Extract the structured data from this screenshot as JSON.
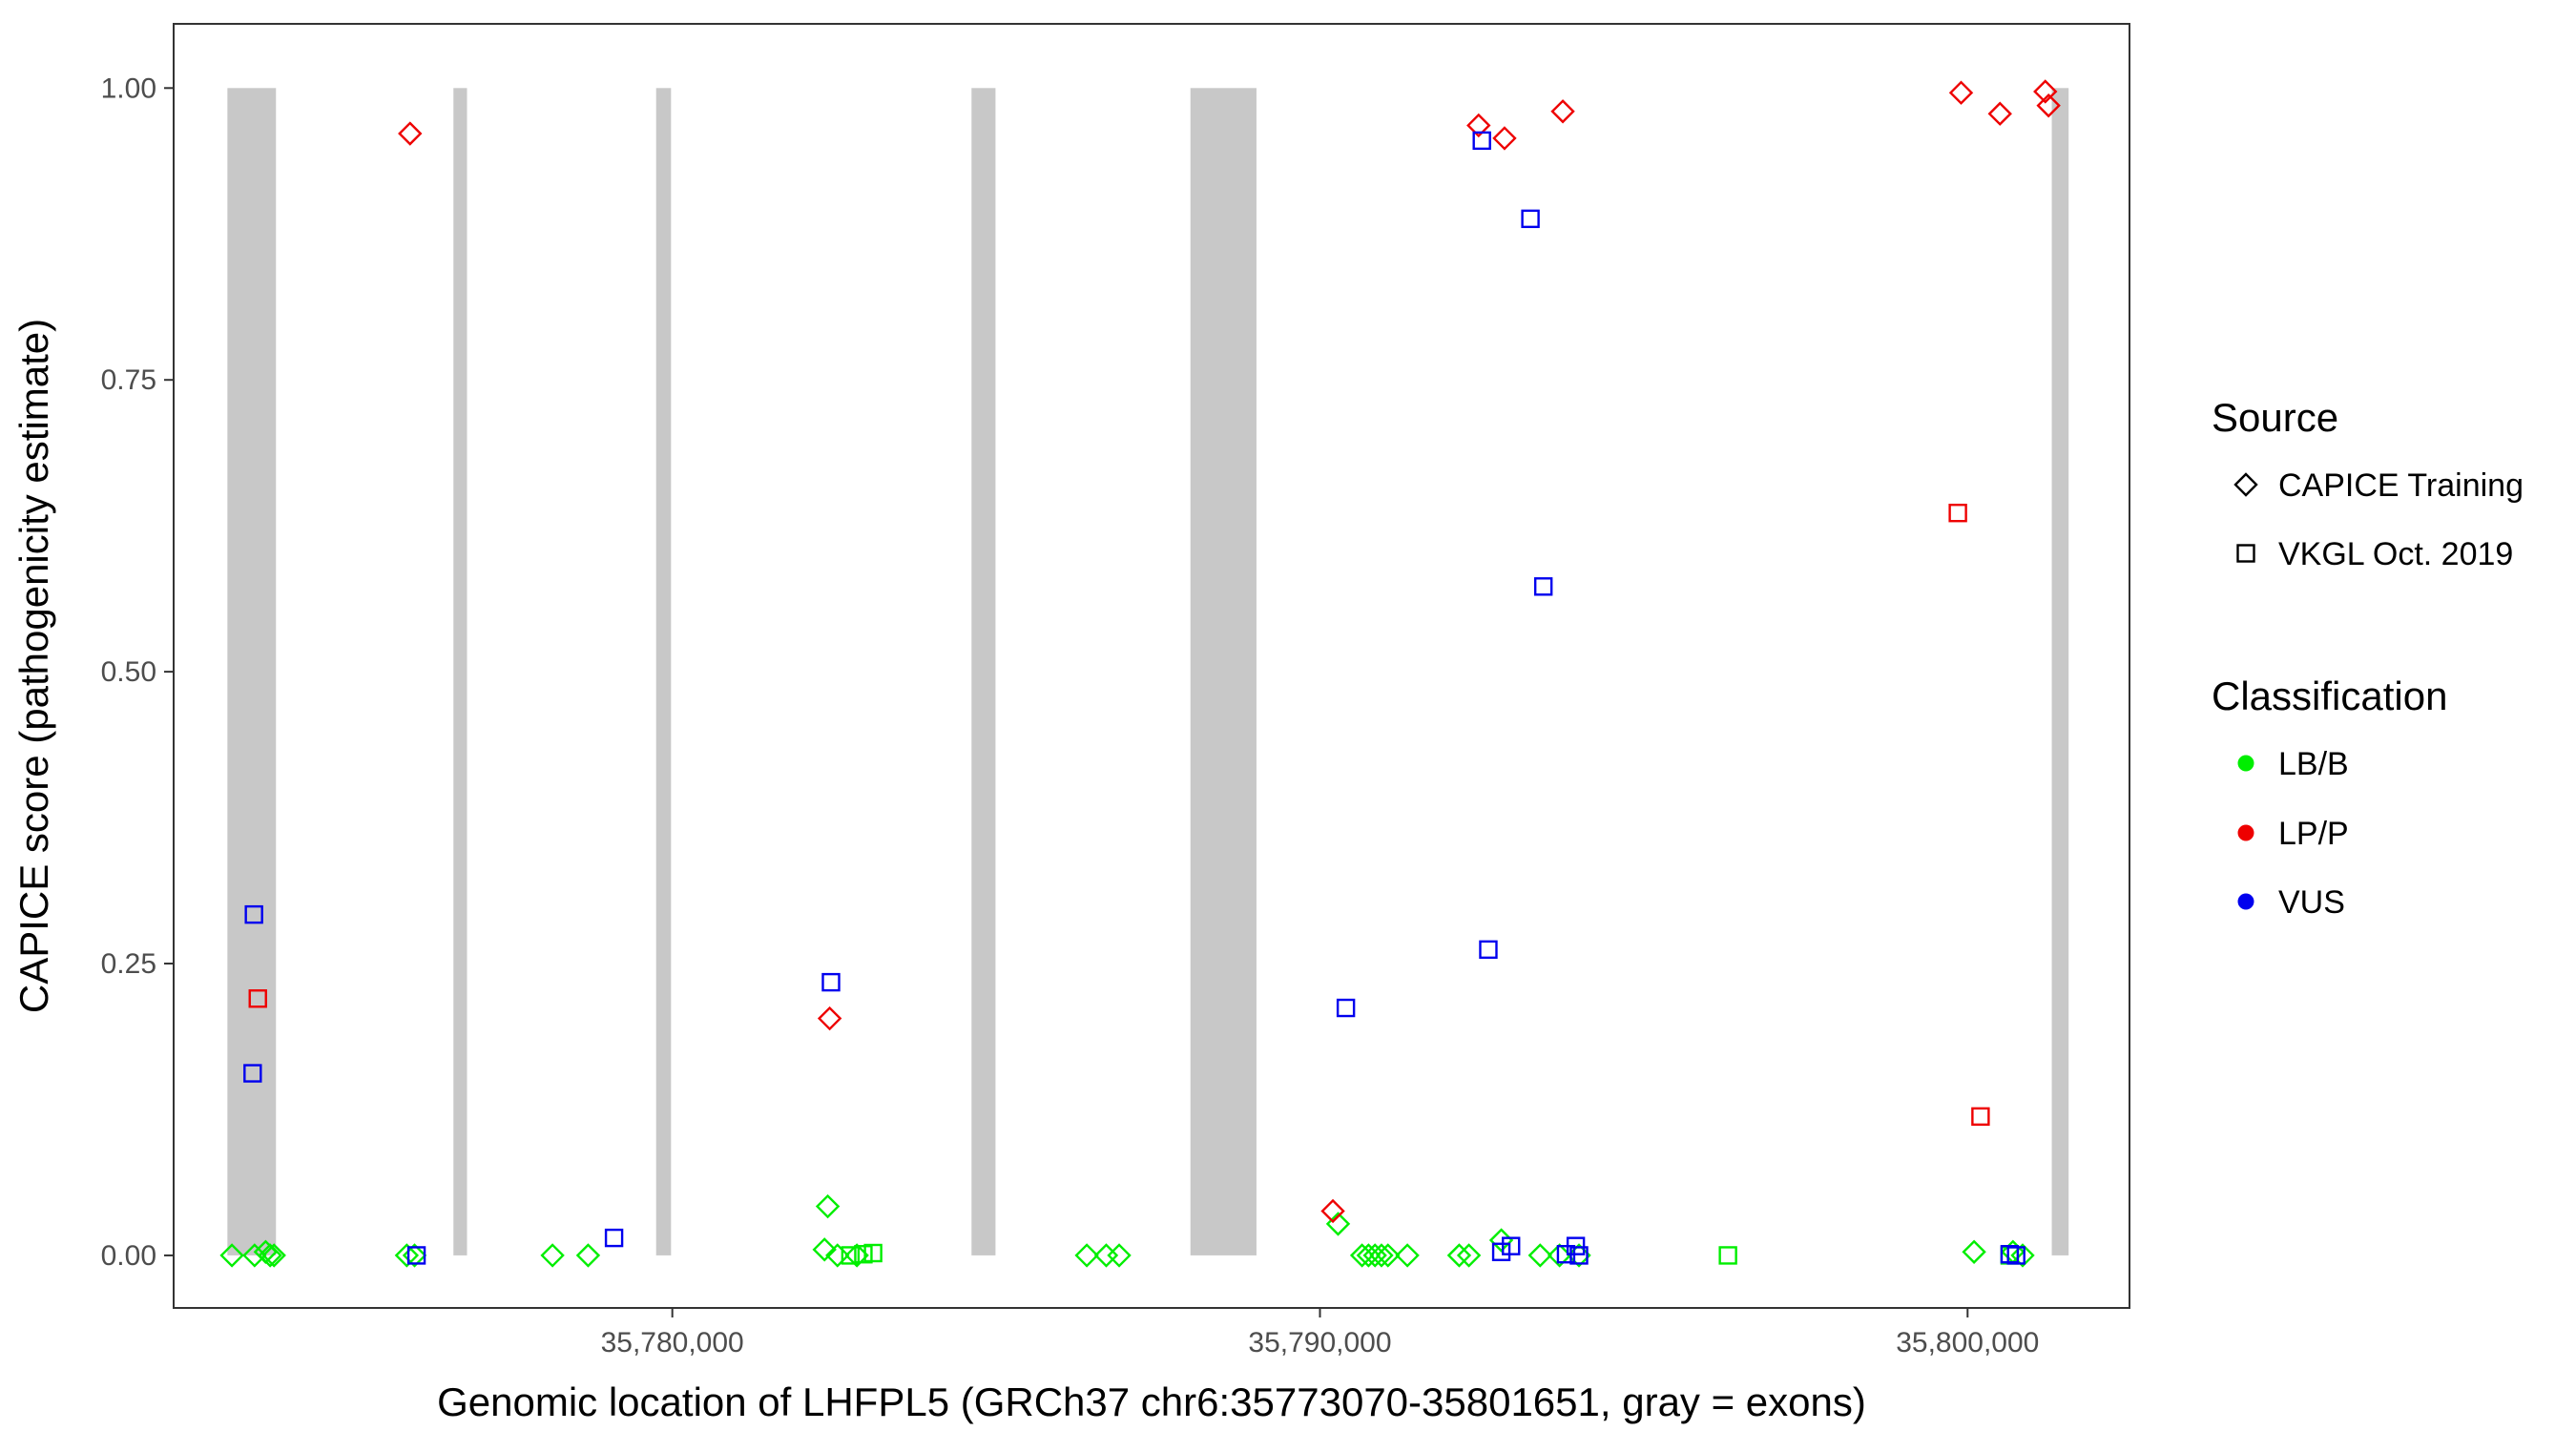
{
  "chart_data": {
    "type": "scatter",
    "title": "",
    "xlabel": "Genomic location of LHFPL5 (GRCh37 chr6:35773070-35801651, gray = exons)",
    "ylabel": "CAPICE score (pathogenicity estimate)",
    "xlim": [
      35772300,
      35802500
    ],
    "ylim": [
      -0.045,
      1.055
    ],
    "x_ticks": [
      35780000,
      35790000,
      35800000
    ],
    "x_tick_labels": [
      "35,780,000",
      "35,790,000",
      "35,800,000"
    ],
    "y_ticks": [
      0,
      0.25,
      0.5,
      0.75,
      1.0
    ],
    "y_tick_labels": [
      "0.00",
      "0.25",
      "0.50",
      "0.75",
      "1.00"
    ],
    "grid": false,
    "legend_position": "right",
    "exons": [
      [
        35773130,
        35773880
      ],
      [
        35776620,
        35776830
      ],
      [
        35779750,
        35779980
      ],
      [
        35784620,
        35784990
      ],
      [
        35788000,
        35789020
      ],
      [
        35801300,
        35801560
      ]
    ],
    "legend": {
      "source": {
        "title": "Source",
        "items": [
          {
            "label": "CAPICE Training",
            "shape": "diamond"
          },
          {
            "label": "VKGL Oct. 2019",
            "shape": "square"
          }
        ]
      },
      "classification": {
        "title": "Classification",
        "items": [
          {
            "label": "LB/B",
            "color": "#00ee00"
          },
          {
            "label": "LP/P",
            "color": "#ee0000"
          },
          {
            "label": "VUS",
            "color": "#0000ee"
          }
        ]
      }
    },
    "colors": {
      "LB/B": "#00ee00",
      "LP/P": "#ee0000",
      "VUS": "#0000ee",
      "exon": "#c8c8c8"
    },
    "points": [
      {
        "x": 35773200,
        "y": 0.0,
        "source": "CAPICE Training",
        "class": "LB/B"
      },
      {
        "x": 35773550,
        "y": 0.0,
        "source": "CAPICE Training",
        "class": "LB/B"
      },
      {
        "x": 35773720,
        "y": 0.003,
        "source": "CAPICE Training",
        "class": "LB/B"
      },
      {
        "x": 35773790,
        "y": 0.0,
        "source": "CAPICE Training",
        "class": "LB/B"
      },
      {
        "x": 35773850,
        "y": 0.0,
        "source": "CAPICE Training",
        "class": "LB/B"
      },
      {
        "x": 35775900,
        "y": 0.0,
        "source": "CAPICE Training",
        "class": "LB/B"
      },
      {
        "x": 35776020,
        "y": 0.0,
        "source": "CAPICE Training",
        "class": "LB/B"
      },
      {
        "x": 35778150,
        "y": 0.0,
        "source": "CAPICE Training",
        "class": "LB/B"
      },
      {
        "x": 35778700,
        "y": 0.0,
        "source": "CAPICE Training",
        "class": "LB/B"
      },
      {
        "x": 35782350,
        "y": 0.005,
        "source": "CAPICE Training",
        "class": "LB/B"
      },
      {
        "x": 35782400,
        "y": 0.042,
        "source": "CAPICE Training",
        "class": "LB/B"
      },
      {
        "x": 35782550,
        "y": 0.0,
        "source": "CAPICE Training",
        "class": "LB/B"
      },
      {
        "x": 35782850,
        "y": 0.0,
        "source": "CAPICE Training",
        "class": "LB/B"
      },
      {
        "x": 35786400,
        "y": 0.0,
        "source": "CAPICE Training",
        "class": "LB/B"
      },
      {
        "x": 35786700,
        "y": 0.0,
        "source": "CAPICE Training",
        "class": "LB/B"
      },
      {
        "x": 35786900,
        "y": 0.0,
        "source": "CAPICE Training",
        "class": "LB/B"
      },
      {
        "x": 35790280,
        "y": 0.027,
        "source": "CAPICE Training",
        "class": "LB/B"
      },
      {
        "x": 35790650,
        "y": 0.0,
        "source": "CAPICE Training",
        "class": "LB/B"
      },
      {
        "x": 35790750,
        "y": 0.0,
        "source": "CAPICE Training",
        "class": "LB/B"
      },
      {
        "x": 35790850,
        "y": 0.0,
        "source": "CAPICE Training",
        "class": "LB/B"
      },
      {
        "x": 35790950,
        "y": 0.0,
        "source": "CAPICE Training",
        "class": "LB/B"
      },
      {
        "x": 35791050,
        "y": 0.0,
        "source": "CAPICE Training",
        "class": "LB/B"
      },
      {
        "x": 35791350,
        "y": 0.0,
        "source": "CAPICE Training",
        "class": "LB/B"
      },
      {
        "x": 35792150,
        "y": 0.0,
        "source": "CAPICE Training",
        "class": "LB/B"
      },
      {
        "x": 35792300,
        "y": 0.0,
        "source": "CAPICE Training",
        "class": "LB/B"
      },
      {
        "x": 35792800,
        "y": 0.013,
        "source": "CAPICE Training",
        "class": "LB/B"
      },
      {
        "x": 35793400,
        "y": 0.0,
        "source": "CAPICE Training",
        "class": "LB/B"
      },
      {
        "x": 35793700,
        "y": 0.0,
        "source": "CAPICE Training",
        "class": "LB/B"
      },
      {
        "x": 35794000,
        "y": 0.0,
        "source": "CAPICE Training",
        "class": "LB/B"
      },
      {
        "x": 35800100,
        "y": 0.003,
        "source": "CAPICE Training",
        "class": "LB/B"
      },
      {
        "x": 35800700,
        "y": 0.003,
        "source": "CAPICE Training",
        "class": "LB/B"
      },
      {
        "x": 35800850,
        "y": 0.0,
        "source": "CAPICE Training",
        "class": "LB/B"
      },
      {
        "x": 35782750,
        "y": 0.0,
        "source": "VKGL Oct. 2019",
        "class": "LB/B"
      },
      {
        "x": 35782950,
        "y": 0.001,
        "source": "VKGL Oct. 2019",
        "class": "LB/B"
      },
      {
        "x": 35783100,
        "y": 0.002,
        "source": "VKGL Oct. 2019",
        "class": "LB/B"
      },
      {
        "x": 35796300,
        "y": 0.0,
        "source": "VKGL Oct. 2019",
        "class": "LB/B"
      },
      {
        "x": 35800650,
        "y": 0.0,
        "source": "VKGL Oct. 2019",
        "class": "LB/B"
      },
      {
        "x": 35775950,
        "y": 0.961,
        "source": "CAPICE Training",
        "class": "LP/P"
      },
      {
        "x": 35782430,
        "y": 0.203,
        "source": "CAPICE Training",
        "class": "LP/P"
      },
      {
        "x": 35790200,
        "y": 0.038,
        "source": "CAPICE Training",
        "class": "LP/P"
      },
      {
        "x": 35792450,
        "y": 0.968,
        "source": "CAPICE Training",
        "class": "LP/P"
      },
      {
        "x": 35792850,
        "y": 0.957,
        "source": "CAPICE Training",
        "class": "LP/P"
      },
      {
        "x": 35793750,
        "y": 0.98,
        "source": "CAPICE Training",
        "class": "LP/P"
      },
      {
        "x": 35799900,
        "y": 0.996,
        "source": "CAPICE Training",
        "class": "LP/P"
      },
      {
        "x": 35800500,
        "y": 0.978,
        "source": "CAPICE Training",
        "class": "LP/P"
      },
      {
        "x": 35801200,
        "y": 0.997,
        "source": "CAPICE Training",
        "class": "LP/P"
      },
      {
        "x": 35801250,
        "y": 0.985,
        "source": "CAPICE Training",
        "class": "LP/P"
      },
      {
        "x": 35773600,
        "y": 0.22,
        "source": "VKGL Oct. 2019",
        "class": "LP/P"
      },
      {
        "x": 35799850,
        "y": 0.636,
        "source": "VKGL Oct. 2019",
        "class": "LP/P"
      },
      {
        "x": 35800200,
        "y": 0.119,
        "source": "VKGL Oct. 2019",
        "class": "LP/P"
      },
      {
        "x": 35773540,
        "y": 0.292,
        "source": "VKGL Oct. 2019",
        "class": "VUS"
      },
      {
        "x": 35773520,
        "y": 0.156,
        "source": "VKGL Oct. 2019",
        "class": "VUS"
      },
      {
        "x": 35776050,
        "y": 0.0,
        "source": "VKGL Oct. 2019",
        "class": "VUS"
      },
      {
        "x": 35779100,
        "y": 0.015,
        "source": "VKGL Oct. 2019",
        "class": "VUS"
      },
      {
        "x": 35782450,
        "y": 0.234,
        "source": "VKGL Oct. 2019",
        "class": "VUS"
      },
      {
        "x": 35790400,
        "y": 0.212,
        "source": "VKGL Oct. 2019",
        "class": "VUS"
      },
      {
        "x": 35792500,
        "y": 0.955,
        "source": "VKGL Oct. 2019",
        "class": "VUS"
      },
      {
        "x": 35792600,
        "y": 0.262,
        "source": "VKGL Oct. 2019",
        "class": "VUS"
      },
      {
        "x": 35792800,
        "y": 0.003,
        "source": "VKGL Oct. 2019",
        "class": "VUS"
      },
      {
        "x": 35792950,
        "y": 0.008,
        "source": "VKGL Oct. 2019",
        "class": "VUS"
      },
      {
        "x": 35793250,
        "y": 0.888,
        "source": "VKGL Oct. 2019",
        "class": "VUS"
      },
      {
        "x": 35793450,
        "y": 0.573,
        "source": "VKGL Oct. 2019",
        "class": "VUS"
      },
      {
        "x": 35793800,
        "y": 0.001,
        "source": "VKGL Oct. 2019",
        "class": "VUS"
      },
      {
        "x": 35793950,
        "y": 0.008,
        "source": "VKGL Oct. 2019",
        "class": "VUS"
      },
      {
        "x": 35794000,
        "y": 0.0,
        "source": "VKGL Oct. 2019",
        "class": "VUS"
      },
      {
        "x": 35800650,
        "y": 0.001,
        "source": "VKGL Oct. 2019",
        "class": "VUS"
      },
      {
        "x": 35800750,
        "y": 0.0,
        "source": "VKGL Oct. 2019",
        "class": "VUS"
      }
    ]
  }
}
